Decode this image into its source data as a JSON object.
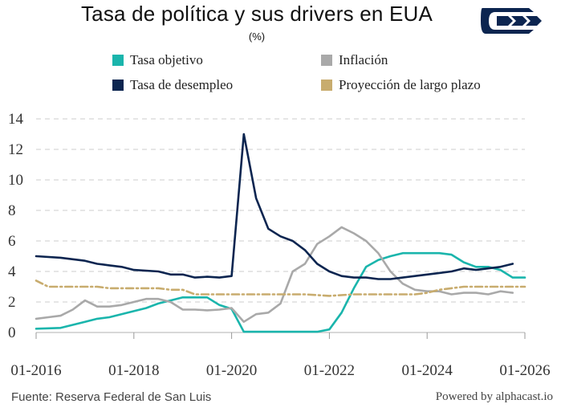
{
  "header": {
    "title": "Tasa de política y sus drivers en EUA",
    "subtitle": "(%)"
  },
  "footer": {
    "source": "Fuente: Reserva Federal de San Luis",
    "credit": "Powered by alphacast.io"
  },
  "chart_data": {
    "type": "line",
    "title": "Tasa de política y sus drivers en EUA",
    "subtitle": "(%)",
    "xlabel": "",
    "ylabel": "",
    "ylim": [
      0,
      14
    ],
    "xlim": [
      2016.0,
      2026.0
    ],
    "yticks": [
      0,
      2,
      4,
      6,
      8,
      10,
      12,
      14
    ],
    "xticks": [
      {
        "value": 2016.0,
        "label": "01-2016"
      },
      {
        "value": 2018.0,
        "label": "01-2018"
      },
      {
        "value": 2020.0,
        "label": "01-2020"
      },
      {
        "value": 2022.0,
        "label": "01-2022"
      },
      {
        "value": 2024.0,
        "label": "01-2024"
      },
      {
        "value": 2026.0,
        "label": "01-2026"
      }
    ],
    "grid": "horizontal-dashed",
    "legend_position": "top",
    "series": [
      {
        "name": "Tasa objetivo",
        "color": "#1ab5ac",
        "style": "solid",
        "x": [
          2016.0,
          2016.5,
          2017.0,
          2017.25,
          2017.5,
          2018.0,
          2018.25,
          2018.5,
          2018.75,
          2019.0,
          2019.5,
          2019.75,
          2020.0,
          2020.25,
          2021.0,
          2021.75,
          2022.0,
          2022.25,
          2022.5,
          2022.75,
          2023.0,
          2023.25,
          2023.5,
          2023.75,
          2024.0,
          2024.25,
          2024.5,
          2024.75,
          2025.0,
          2025.25,
          2025.5,
          2025.75,
          2026.0
        ],
        "y": [
          0.25,
          0.3,
          0.7,
          0.9,
          1.0,
          1.4,
          1.6,
          1.9,
          2.1,
          2.3,
          2.3,
          1.8,
          1.55,
          0.05,
          0.05,
          0.05,
          0.2,
          1.3,
          2.9,
          4.3,
          4.75,
          5.0,
          5.2,
          5.2,
          5.2,
          5.2,
          5.1,
          4.6,
          4.3,
          4.3,
          4.1,
          3.6,
          3.6
        ]
      },
      {
        "name": "Inflación",
        "color": "#a9a9a9",
        "style": "solid",
        "x": [
          2016.0,
          2016.25,
          2016.5,
          2016.75,
          2017.0,
          2017.25,
          2017.5,
          2017.75,
          2018.0,
          2018.25,
          2018.5,
          2018.75,
          2019.0,
          2019.25,
          2019.5,
          2019.75,
          2020.0,
          2020.25,
          2020.5,
          2020.75,
          2021.0,
          2021.25,
          2021.5,
          2021.75,
          2022.0,
          2022.25,
          2022.5,
          2022.75,
          2023.0,
          2023.25,
          2023.5,
          2023.75,
          2024.0,
          2024.25,
          2024.5,
          2024.75,
          2025.0,
          2025.25,
          2025.5,
          2025.75
        ],
        "y": [
          0.9,
          1.0,
          1.1,
          1.5,
          2.1,
          1.7,
          1.7,
          1.8,
          2.0,
          2.2,
          2.2,
          2.0,
          1.5,
          1.5,
          1.45,
          1.5,
          1.6,
          0.7,
          1.2,
          1.3,
          1.9,
          4.0,
          4.5,
          5.8,
          6.3,
          6.9,
          6.5,
          6.0,
          5.2,
          4.0,
          3.2,
          2.8,
          2.7,
          2.7,
          2.5,
          2.6,
          2.6,
          2.5,
          2.7,
          2.6
        ]
      },
      {
        "name": "Tasa de desempleo",
        "color": "#0c2550",
        "style": "solid",
        "x": [
          2016.0,
          2016.5,
          2016.75,
          2017.0,
          2017.25,
          2017.5,
          2017.75,
          2018.0,
          2018.5,
          2018.75,
          2019.0,
          2019.25,
          2019.5,
          2019.75,
          2020.0,
          2020.25,
          2020.5,
          2020.75,
          2021.0,
          2021.25,
          2021.5,
          2021.75,
          2022.0,
          2022.25,
          2022.5,
          2022.75,
          2023.0,
          2023.25,
          2023.5,
          2023.75,
          2024.0,
          2024.25,
          2024.5,
          2024.75,
          2025.0,
          2025.25,
          2025.5,
          2025.75
        ],
        "y": [
          5.0,
          4.9,
          4.8,
          4.7,
          4.5,
          4.4,
          4.3,
          4.1,
          4.0,
          3.8,
          3.8,
          3.6,
          3.65,
          3.6,
          3.7,
          13.0,
          8.8,
          6.8,
          6.3,
          6.0,
          5.4,
          4.5,
          4.0,
          3.7,
          3.6,
          3.6,
          3.5,
          3.5,
          3.6,
          3.7,
          3.8,
          3.9,
          4.0,
          4.2,
          4.1,
          4.2,
          4.3,
          4.5
        ]
      },
      {
        "name": "Proyección de largo plazo",
        "color": "#c8ac6e",
        "style": "dashdot",
        "x": [
          2016.0,
          2016.25,
          2016.5,
          2016.75,
          2017.0,
          2017.25,
          2017.5,
          2017.75,
          2018.0,
          2018.25,
          2018.5,
          2018.75,
          2019.0,
          2019.25,
          2019.5,
          2019.75,
          2020.0,
          2020.5,
          2021.0,
          2021.5,
          2022.0,
          2022.5,
          2023.0,
          2023.5,
          2023.75,
          2024.0,
          2024.25,
          2024.5,
          2024.75,
          2025.0,
          2025.25,
          2025.5,
          2025.75,
          2026.0
        ],
        "y": [
          3.4,
          3.0,
          3.0,
          3.0,
          3.0,
          3.0,
          2.9,
          2.9,
          2.9,
          2.9,
          2.9,
          2.8,
          2.8,
          2.5,
          2.5,
          2.5,
          2.5,
          2.5,
          2.5,
          2.5,
          2.4,
          2.5,
          2.5,
          2.5,
          2.5,
          2.6,
          2.8,
          2.9,
          3.0,
          3.0,
          3.0,
          3.0,
          3.0,
          3.0
        ]
      }
    ]
  }
}
